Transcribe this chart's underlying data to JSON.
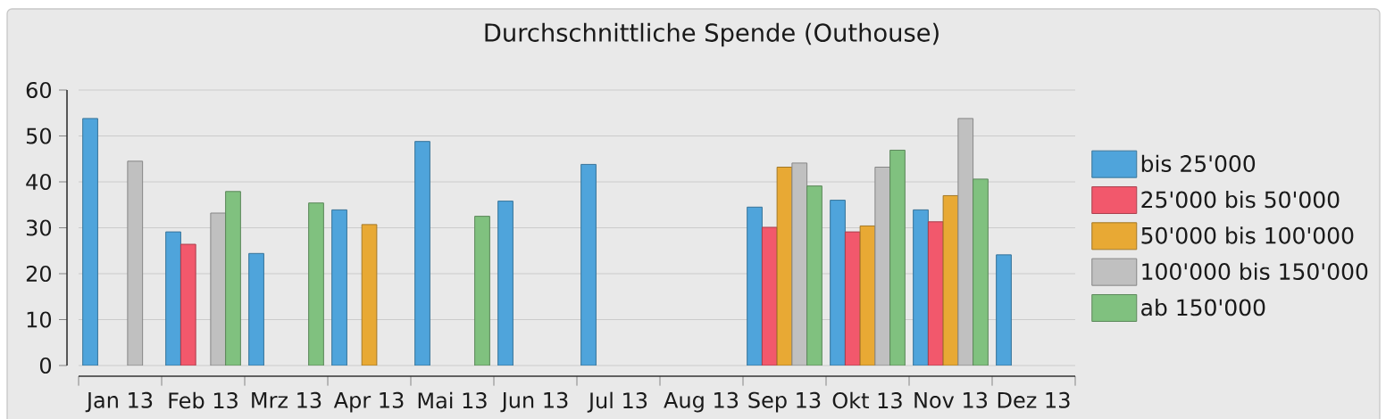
{
  "chart_data": {
    "type": "bar",
    "title": "Durchschnittliche Spende (Outhouse)",
    "categories": [
      "Jan 13",
      "Feb 13",
      "Mrz 13",
      "Apr 13",
      "Mai 13",
      "Jun 13",
      "Jul 13",
      "Aug 13",
      "Sep 13",
      "Okt 13",
      "Nov 13",
      "Dez 13"
    ],
    "series": [
      {
        "name": "bis 25'000",
        "color": "#4fa4db",
        "values": [
          53.8,
          29.1,
          24.4,
          33.9,
          48.8,
          35.8,
          43.8,
          null,
          34.5,
          36.0,
          33.9,
          24.1
        ]
      },
      {
        "name": "25'000 bis 50'000",
        "color": "#f2586c",
        "values": [
          null,
          26.4,
          null,
          null,
          null,
          null,
          null,
          null,
          30.1,
          29.1,
          31.3,
          null
        ]
      },
      {
        "name": "50'000 bis 100'000",
        "color": "#e8a934",
        "values": [
          null,
          null,
          null,
          30.7,
          null,
          null,
          null,
          null,
          43.2,
          30.4,
          37.0,
          null
        ]
      },
      {
        "name": "100'000 bis 150'000",
        "color": "#c0c0c0",
        "values": [
          44.5,
          33.2,
          null,
          null,
          null,
          null,
          null,
          null,
          44.1,
          43.2,
          53.8,
          null
        ]
      },
      {
        "name": "ab 150'000",
        "color": "#80c17f",
        "values": [
          null,
          37.9,
          35.4,
          null,
          32.5,
          null,
          null,
          null,
          39.1,
          46.9,
          40.6,
          null
        ]
      }
    ],
    "ylim": [
      0,
      60
    ],
    "yticks": [
      0,
      10,
      20,
      30,
      40,
      50,
      60
    ],
    "grid": "y",
    "legend": "right"
  }
}
